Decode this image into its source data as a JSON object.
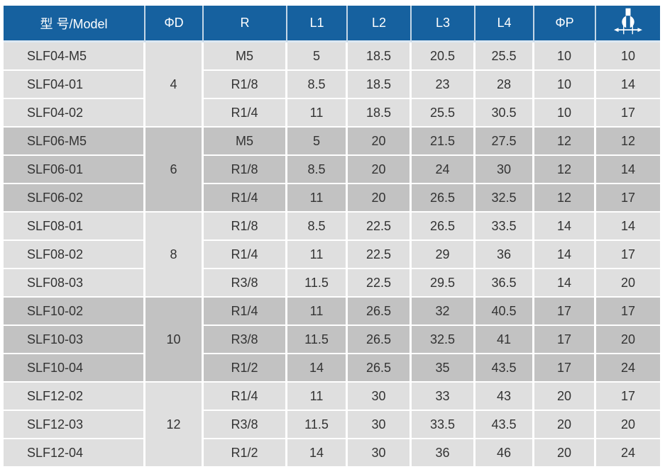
{
  "colors": {
    "header_bg": "#16619f",
    "header_text": "#ffffff",
    "row_light": "#dfdfdf",
    "row_dark": "#c2c2c2",
    "grid_line": "#ffffff",
    "body_text": "#333333"
  },
  "table": {
    "columns": [
      {
        "key": "model",
        "label": "型 号/Model"
      },
      {
        "key": "phi_d",
        "label": "ΦD"
      },
      {
        "key": "r",
        "label": "R"
      },
      {
        "key": "l1",
        "label": "L1"
      },
      {
        "key": "l2",
        "label": "L2"
      },
      {
        "key": "l3",
        "label": "L3"
      },
      {
        "key": "l4",
        "label": "L4"
      },
      {
        "key": "phi_p",
        "label": "ΦP"
      },
      {
        "key": "wrench",
        "label": "",
        "icon": "wrench-size-icon"
      }
    ],
    "groups": [
      {
        "phi_d": "4",
        "rows": [
          {
            "model": "SLF04-M5",
            "r": "M5",
            "l1": "5",
            "l2": "18.5",
            "l3": "20.5",
            "l4": "25.5",
            "phi_p": "10",
            "wrench": "10"
          },
          {
            "model": "SLF04-01",
            "r": "R1/8",
            "l1": "8.5",
            "l2": "18.5",
            "l3": "23",
            "l4": "28",
            "phi_p": "10",
            "wrench": "14"
          },
          {
            "model": "SLF04-02",
            "r": "R1/4",
            "l1": "11",
            "l2": "18.5",
            "l3": "25.5",
            "l4": "30.5",
            "phi_p": "10",
            "wrench": "17"
          }
        ]
      },
      {
        "phi_d": "6",
        "rows": [
          {
            "model": "SLF06-M5",
            "r": "M5",
            "l1": "5",
            "l2": "20",
            "l3": "21.5",
            "l4": "27.5",
            "phi_p": "12",
            "wrench": "12"
          },
          {
            "model": "SLF06-01",
            "r": "R1/8",
            "l1": "8.5",
            "l2": "20",
            "l3": "24",
            "l4": "30",
            "phi_p": "12",
            "wrench": "14"
          },
          {
            "model": "SLF06-02",
            "r": "R1/4",
            "l1": "11",
            "l2": "20",
            "l3": "26.5",
            "l4": "32.5",
            "phi_p": "12",
            "wrench": "17"
          }
        ]
      },
      {
        "phi_d": "8",
        "rows": [
          {
            "model": "SLF08-01",
            "r": "R1/8",
            "l1": "8.5",
            "l2": "22.5",
            "l3": "26.5",
            "l4": "33.5",
            "phi_p": "14",
            "wrench": "14"
          },
          {
            "model": "SLF08-02",
            "r": "R1/4",
            "l1": "11",
            "l2": "22.5",
            "l3": "29",
            "l4": "36",
            "phi_p": "14",
            "wrench": "17"
          },
          {
            "model": "SLF08-03",
            "r": "R3/8",
            "l1": "11.5",
            "l2": "22.5",
            "l3": "29.5",
            "l4": "36.5",
            "phi_p": "14",
            "wrench": "20"
          }
        ]
      },
      {
        "phi_d": "10",
        "rows": [
          {
            "model": "SLF10-02",
            "r": "R1/4",
            "l1": "11",
            "l2": "26.5",
            "l3": "32",
            "l4": "40.5",
            "phi_p": "17",
            "wrench": "17"
          },
          {
            "model": "SLF10-03",
            "r": "R3/8",
            "l1": "11.5",
            "l2": "26.5",
            "l3": "32.5",
            "l4": "41",
            "phi_p": "17",
            "wrench": "20"
          },
          {
            "model": "SLF10-04",
            "r": "R1/2",
            "l1": "14",
            "l2": "26.5",
            "l3": "35",
            "l4": "43.5",
            "phi_p": "17",
            "wrench": "24"
          }
        ]
      },
      {
        "phi_d": "12",
        "rows": [
          {
            "model": "SLF12-02",
            "r": "R1/4",
            "l1": "11",
            "l2": "30",
            "l3": "33",
            "l4": "43",
            "phi_p": "20",
            "wrench": "17"
          },
          {
            "model": "SLF12-03",
            "r": "R3/8",
            "l1": "11.5",
            "l2": "30",
            "l3": "33.5",
            "l4": "43.5",
            "phi_p": "20",
            "wrench": "20"
          },
          {
            "model": "SLF12-04",
            "r": "R1/2",
            "l1": "14",
            "l2": "30",
            "l3": "36",
            "l4": "46",
            "phi_p": "20",
            "wrench": "24"
          }
        ]
      }
    ]
  }
}
